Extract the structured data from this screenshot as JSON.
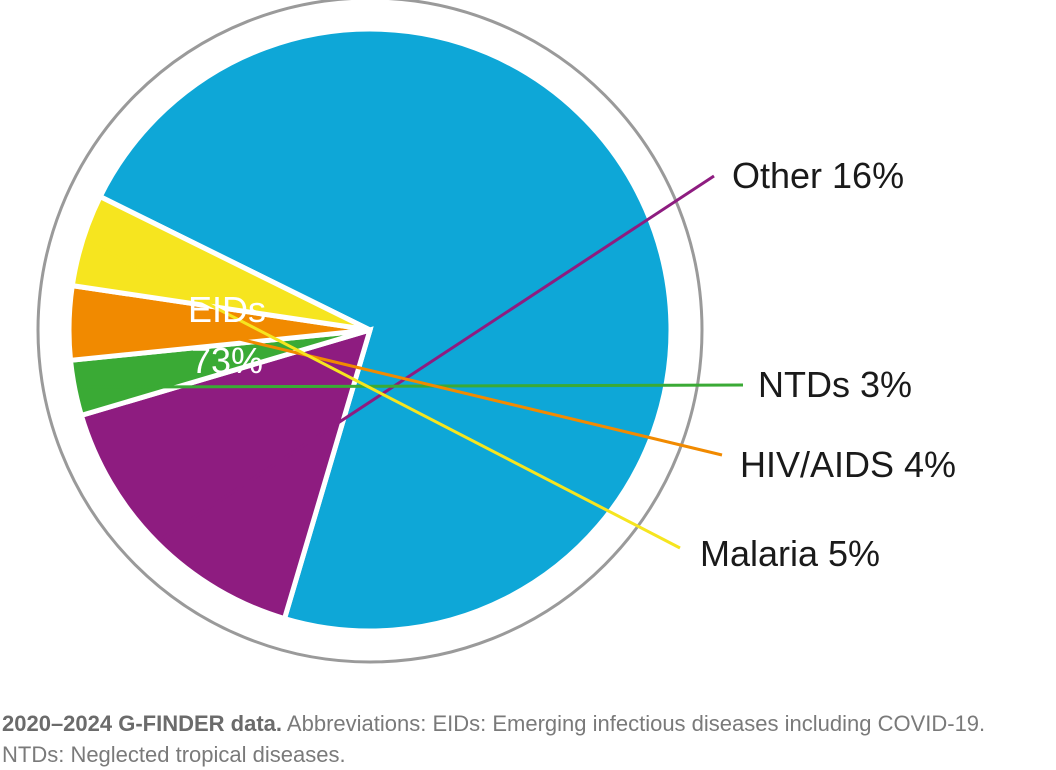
{
  "chart_data": {
    "type": "pie",
    "slices": [
      {
        "label": "EIDs",
        "value": 73,
        "value_label": "73%",
        "color": "#0ea7d7"
      },
      {
        "label": "Other",
        "value": 16,
        "value_label": "16%",
        "color": "#8e1c80"
      },
      {
        "label": "NTDs",
        "value": 3,
        "value_label": "3%",
        "color": "#3aaa35"
      },
      {
        "label": "HIV/AIDS",
        "value": 4,
        "value_label": "4%",
        "color": "#f18a00"
      },
      {
        "label": "Malaria",
        "value": 5,
        "value_label": "5%",
        "color": "#f6e51f"
      }
    ],
    "ring_color": "#9a9a9a",
    "label_color": "#1a1a1a",
    "inside_label_color": "#ffffff"
  },
  "caption": {
    "bold": "2020–2024 G-FINDER data.",
    "text": " Abbreviations: EIDs: Emerging infectious diseases including COVID-19. NTDs: Neglected tropical diseases."
  }
}
